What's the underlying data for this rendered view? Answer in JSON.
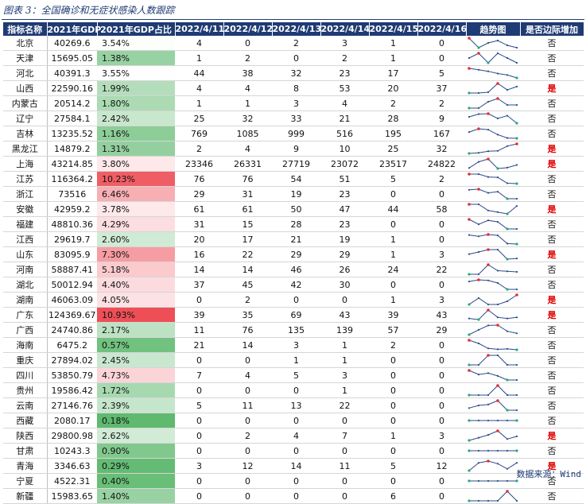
{
  "caption": "图表 3：全国确诊和无症状感染人数跟踪",
  "source": "数据来源：Wind",
  "colors": {
    "header_bg": "#1f3b73",
    "low_share": "#5fb96f",
    "high_share": "#ee4f55",
    "flag_yes": "#e00000",
    "spark_line": "#2c4a8a",
    "spark_max": "#e0303a",
    "spark_min": "#2aa87a"
  },
  "headers": [
    "指标名称",
    "2021年GDP",
    "2021年GDP占比",
    "2022/4/11",
    "2022/4/12",
    "2022/4/13",
    "2022/4/14",
    "2022/4/15",
    "2022/4/16",
    "趋势图",
    "是否边际增加"
  ],
  "rows": [
    {
      "province": "北京",
      "gdp": "40269.6",
      "share": "3.54%",
      "share_value": 3.54,
      "daily": [
        4,
        0,
        2,
        3,
        1,
        0
      ],
      "increase": "否"
    },
    {
      "province": "天津",
      "gdp": "15695.05",
      "share": "1.38%",
      "share_value": 1.38,
      "daily": [
        1,
        2,
        0,
        2,
        1,
        0
      ],
      "increase": "否"
    },
    {
      "province": "河北",
      "gdp": "40391.3",
      "share": "3.55%",
      "share_value": 3.55,
      "daily": [
        44,
        38,
        32,
        23,
        17,
        5
      ],
      "increase": "否"
    },
    {
      "province": "山西",
      "gdp": "22590.16",
      "share": "1.99%",
      "share_value": 1.99,
      "daily": [
        4,
        4,
        8,
        53,
        20,
        37
      ],
      "increase": "是"
    },
    {
      "province": "内蒙古",
      "gdp": "20514.2",
      "share": "1.80%",
      "share_value": 1.8,
      "daily": [
        1,
        1,
        3,
        4,
        2,
        2
      ],
      "increase": "否"
    },
    {
      "province": "辽宁",
      "gdp": "27584.1",
      "share": "2.42%",
      "share_value": 2.42,
      "daily": [
        25,
        32,
        33,
        21,
        28,
        9
      ],
      "increase": "否"
    },
    {
      "province": "吉林",
      "gdp": "13235.52",
      "share": "1.16%",
      "share_value": 1.16,
      "daily": [
        769,
        1085,
        999,
        516,
        195,
        167
      ],
      "increase": "否"
    },
    {
      "province": "黑龙江",
      "gdp": "14879.2",
      "share": "1.31%",
      "share_value": 1.31,
      "daily": [
        2,
        4,
        9,
        10,
        25,
        32
      ],
      "increase": "是"
    },
    {
      "province": "上海",
      "gdp": "43214.85",
      "share": "3.80%",
      "share_value": 3.8,
      "daily": [
        23346,
        26331,
        27719,
        23072,
        23517,
        24822
      ],
      "increase": "是"
    },
    {
      "province": "江苏",
      "gdp": "116364.2",
      "share": "10.23%",
      "share_value": 10.23,
      "daily": [
        76,
        76,
        54,
        51,
        5,
        2
      ],
      "increase": "否"
    },
    {
      "province": "浙江",
      "gdp": "73516",
      "share": "6.46%",
      "share_value": 6.46,
      "daily": [
        29,
        31,
        19,
        23,
        0,
        0
      ],
      "increase": "否"
    },
    {
      "province": "安徽",
      "gdp": "42959.2",
      "share": "3.78%",
      "share_value": 3.78,
      "daily": [
        61,
        61,
        50,
        47,
        44,
        58
      ],
      "increase": "是"
    },
    {
      "province": "福建",
      "gdp": "48810.36",
      "share": "4.29%",
      "share_value": 4.29,
      "daily": [
        31,
        15,
        28,
        23,
        0,
        0
      ],
      "increase": "否"
    },
    {
      "province": "江西",
      "gdp": "29619.7",
      "share": "2.60%",
      "share_value": 2.6,
      "daily": [
        20,
        17,
        21,
        19,
        1,
        0
      ],
      "increase": "否"
    },
    {
      "province": "山东",
      "gdp": "83095.9",
      "share": "7.30%",
      "share_value": 7.3,
      "daily": [
        16,
        22,
        29,
        29,
        1,
        3
      ],
      "increase": "是"
    },
    {
      "province": "河南",
      "gdp": "58887.41",
      "share": "5.18%",
      "share_value": 5.18,
      "daily": [
        14,
        14,
        46,
        26,
        24,
        22
      ],
      "increase": "否"
    },
    {
      "province": "湖北",
      "gdp": "50012.94",
      "share": "4.40%",
      "share_value": 4.4,
      "daily": [
        37,
        45,
        42,
        30,
        0,
        0
      ],
      "increase": "否"
    },
    {
      "province": "湖南",
      "gdp": "46063.09",
      "share": "4.05%",
      "share_value": 4.05,
      "daily": [
        0,
        2,
        0,
        0,
        1,
        3
      ],
      "increase": "是"
    },
    {
      "province": "广东",
      "gdp": "124369.67",
      "share": "10.93%",
      "share_value": 10.93,
      "daily": [
        39,
        35,
        69,
        43,
        39,
        43
      ],
      "increase": "是"
    },
    {
      "province": "广西",
      "gdp": "24740.86",
      "share": "2.17%",
      "share_value": 2.17,
      "daily": [
        11,
        76,
        135,
        139,
        57,
        29
      ],
      "increase": "否"
    },
    {
      "province": "海南",
      "gdp": "6475.2",
      "share": "0.57%",
      "share_value": 0.57,
      "daily": [
        21,
        14,
        3,
        1,
        2,
        0
      ],
      "increase": "否"
    },
    {
      "province": "重庆",
      "gdp": "27894.02",
      "share": "2.45%",
      "share_value": 2.45,
      "daily": [
        0,
        0,
        1,
        1,
        0,
        0
      ],
      "increase": "否"
    },
    {
      "province": "四川",
      "gdp": "53850.79",
      "share": "4.73%",
      "share_value": 4.73,
      "daily": [
        7,
        4,
        5,
        3,
        0,
        0
      ],
      "increase": "否"
    },
    {
      "province": "贵州",
      "gdp": "19586.42",
      "share": "1.72%",
      "share_value": 1.72,
      "daily": [
        0,
        0,
        0,
        1,
        0,
        0
      ],
      "increase": "否"
    },
    {
      "province": "云南",
      "gdp": "27146.76",
      "share": "2.39%",
      "share_value": 2.39,
      "daily": [
        5,
        11,
        13,
        22,
        0,
        0
      ],
      "increase": "否"
    },
    {
      "province": "西藏",
      "gdp": "2080.17",
      "share": "0.18%",
      "share_value": 0.18,
      "daily": [
        0,
        0,
        0,
        0,
        0,
        0
      ],
      "increase": "否"
    },
    {
      "province": "陕西",
      "gdp": "29800.98",
      "share": "2.62%",
      "share_value": 2.62,
      "daily": [
        0,
        2,
        4,
        7,
        1,
        3
      ],
      "increase": "是"
    },
    {
      "province": "甘肃",
      "gdp": "10243.3",
      "share": "0.90%",
      "share_value": 0.9,
      "daily": [
        0,
        0,
        0,
        0,
        0,
        0
      ],
      "increase": "否"
    },
    {
      "province": "青海",
      "gdp": "3346.63",
      "share": "0.29%",
      "share_value": 0.29,
      "daily": [
        3,
        12,
        14,
        11,
        5,
        12
      ],
      "increase": "是"
    },
    {
      "province": "宁夏",
      "gdp": "4522.31",
      "share": "0.40%",
      "share_value": 0.4,
      "daily": [
        0,
        0,
        0,
        0,
        0,
        0
      ],
      "increase": "否"
    },
    {
      "province": "新疆",
      "gdp": "15983.65",
      "share": "1.40%",
      "share_value": 1.4,
      "daily": [
        0,
        0,
        0,
        0,
        6,
        0
      ],
      "increase": "否"
    }
  ]
}
